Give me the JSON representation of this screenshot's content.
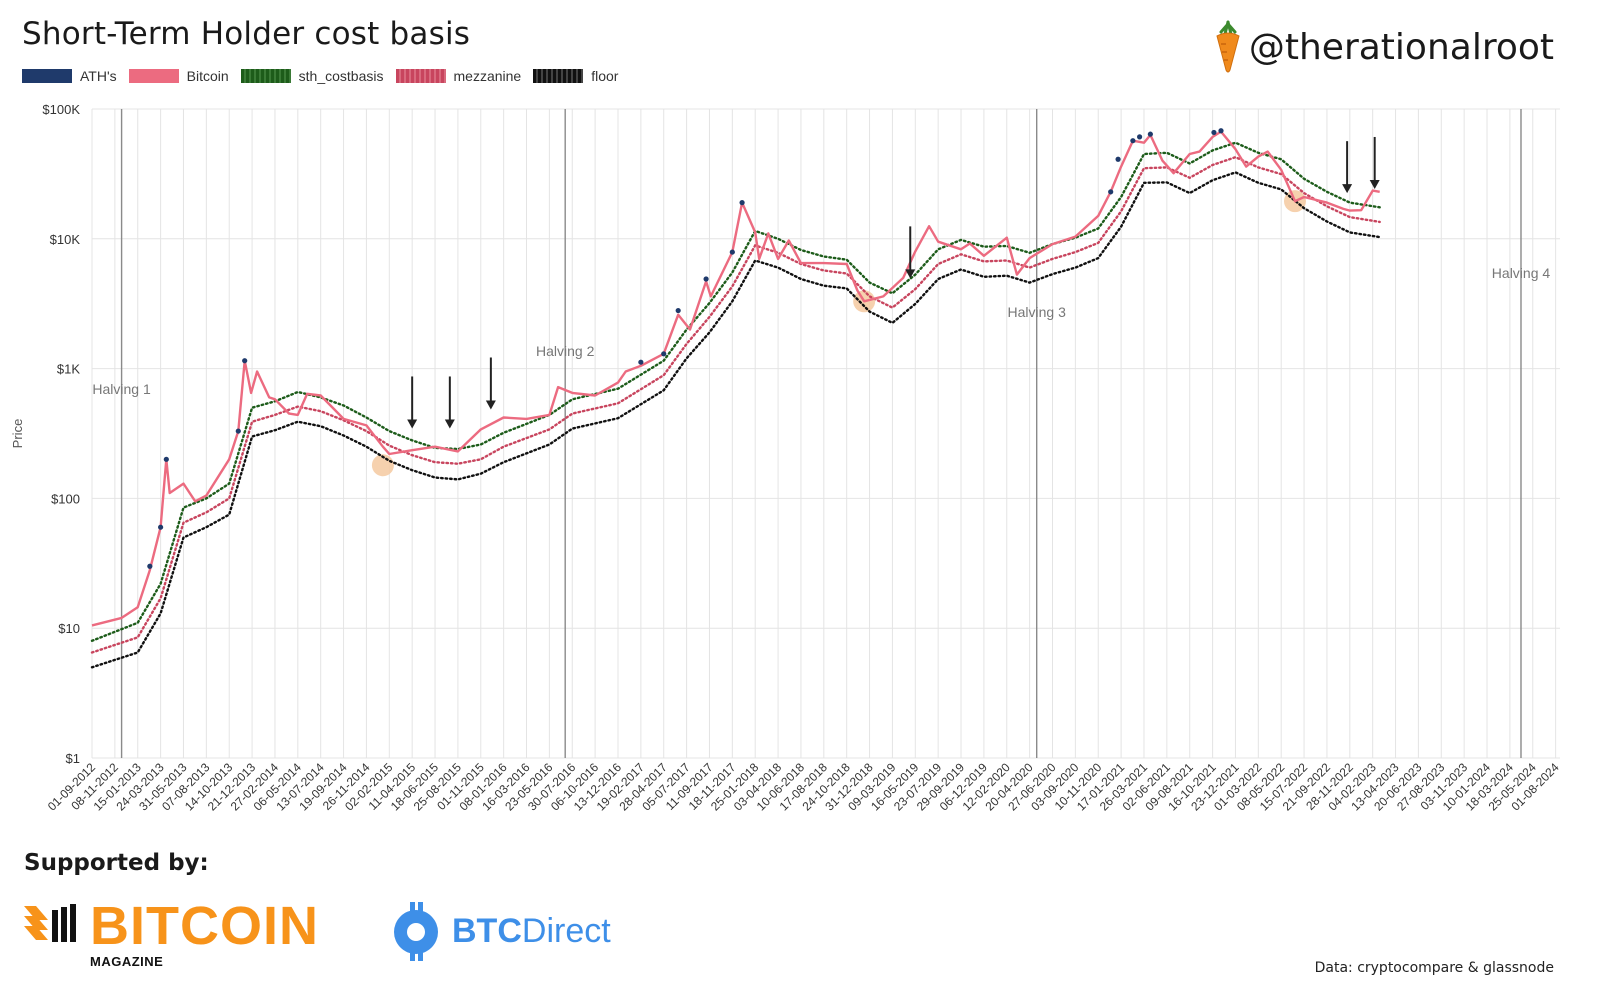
{
  "header": {
    "title": "Short-Term Holder cost basis",
    "handle": "@therationalroot",
    "handle_icon": "carrot-icon"
  },
  "footer": {
    "supported_by": "Supported by:",
    "bitcoin_magazine_word": "BITCOIN",
    "bitcoin_magazine_sub": "MAGAZINE",
    "btc_direct_word_bold": "BTC",
    "btc_direct_word": "Direct",
    "source": "Data: cryptocompare & glassnode"
  },
  "colors": {
    "ath": "#1f3a6b",
    "bitcoin": "#ec6b80",
    "sth_costbasis": "#1d5c1a",
    "mezzanine": "#c8455e",
    "floor": "#111111",
    "halving_line": "#8a8a8a",
    "grid": "#e4e4e4",
    "capitulation_circle": "#f5c9a0",
    "bitcoin_magazine": "#f7931a",
    "btc_direct": "#3e8fe8"
  },
  "chart_data": {
    "type": "line",
    "title": "Short-Term Holder cost basis",
    "ylabel": "Price",
    "xlabel": "",
    "y_scale": "log",
    "ylim": [
      1,
      100000
    ],
    "y_ticks": [
      1,
      10,
      100,
      1000,
      10000,
      100000
    ],
    "y_tick_labels": [
      "$1",
      "$10",
      "$100",
      "$1K",
      "$10K",
      "$100K"
    ],
    "x_range": [
      "2012-09-01",
      "2024-08-14"
    ],
    "x_tick_labels": [
      "01-09-2012",
      "08-11-2012",
      "15-01-2013",
      "24-03-2013",
      "31-05-2013",
      "07-08-2013",
      "14-10-2013",
      "21-12-2013",
      "27-02-2014",
      "06-05-2014",
      "13-07-2014",
      "19-09-2014",
      "26-11-2014",
      "02-02-2015",
      "11-04-2015",
      "18-06-2015",
      "25-08-2015",
      "01-11-2015",
      "08-01-2016",
      "16-03-2016",
      "23-05-2016",
      "30-07-2016",
      "06-10-2016",
      "13-12-2016",
      "19-02-2017",
      "28-04-2017",
      "05-07-2017",
      "11-09-2017",
      "18-11-2017",
      "25-01-2018",
      "03-04-2018",
      "10-06-2018",
      "17-08-2018",
      "24-10-2018",
      "31-12-2018",
      "09-03-2019",
      "16-05-2019",
      "23-07-2019",
      "29-09-2019",
      "06-12-2019",
      "12-02-2020",
      "20-04-2020",
      "27-06-2020",
      "03-09-2020",
      "10-11-2020",
      "17-01-2021",
      "26-03-2021",
      "02-06-2021",
      "09-08-2021",
      "16-10-2021",
      "23-12-2021",
      "01-03-2022",
      "08-05-2022",
      "15-07-2022",
      "21-09-2022",
      "28-11-2022",
      "04-02-2023",
      "13-04-2023",
      "20-06-2023",
      "27-08-2023",
      "03-11-2023",
      "10-01-2024",
      "18-03-2024",
      "25-05-2024",
      "01-08-2024"
    ],
    "grid": true,
    "legend_position": "top-left",
    "legend": [
      "ATH's",
      "Bitcoin",
      "sth_costbasis",
      "mezzanine",
      "floor"
    ],
    "series": [
      {
        "name": "Bitcoin",
        "x": [
          "2012-09-01",
          "2012-11-28",
          "2013-01-15",
          "2013-02-20",
          "2013-03-24",
          "2013-04-10",
          "2013-04-20",
          "2013-05-31",
          "2013-07-05",
          "2013-08-07",
          "2013-10-14",
          "2013-11-10",
          "2013-11-29",
          "2013-12-18",
          "2014-01-05",
          "2014-02-10",
          "2014-02-27",
          "2014-04-10",
          "2014-05-06",
          "2014-06-03",
          "2014-07-13",
          "2014-09-19",
          "2014-11-26",
          "2015-01-14",
          "2015-02-02",
          "2015-04-11",
          "2015-06-18",
          "2015-08-25",
          "2015-11-01",
          "2016-01-08",
          "2016-03-16",
          "2016-05-23",
          "2016-06-18",
          "2016-07-30",
          "2016-10-06",
          "2016-12-13",
          "2017-01-05",
          "2017-02-19",
          "2017-04-28",
          "2017-06-10",
          "2017-07-15",
          "2017-09-01",
          "2017-09-15",
          "2017-11-18",
          "2017-12-17",
          "2018-01-25",
          "2018-02-06",
          "2018-03-05",
          "2018-04-03",
          "2018-05-05",
          "2018-06-10",
          "2018-08-17",
          "2018-10-24",
          "2018-11-25",
          "2018-12-15",
          "2019-02-10",
          "2019-04-10",
          "2019-05-16",
          "2019-06-26",
          "2019-07-23",
          "2019-09-29",
          "2019-10-25",
          "2019-12-06",
          "2020-02-12",
          "2020-03-13",
          "2020-04-20",
          "2020-06-27",
          "2020-09-03",
          "2020-11-10",
          "2020-12-17",
          "2021-01-17",
          "2021-02-21",
          "2021-03-26",
          "2021-04-14",
          "2021-05-20",
          "2021-06-22",
          "2021-08-09",
          "2021-09-07",
          "2021-10-16",
          "2021-11-10",
          "2021-12-23",
          "2022-01-24",
          "2022-03-01",
          "2022-03-29",
          "2022-05-08",
          "2022-06-18",
          "2022-07-15",
          "2022-09-21",
          "2022-11-09",
          "2022-11-28",
          "2023-01-01",
          "2023-02-04",
          "2023-02-25"
        ],
        "values": [
          10.5,
          12,
          14.5,
          28,
          60,
          200,
          110,
          130,
          95,
          105,
          200,
          330,
          1150,
          650,
          950,
          600,
          580,
          450,
          440,
          640,
          620,
          410,
          365,
          250,
          220,
          235,
          250,
          230,
          340,
          420,
          410,
          440,
          720,
          650,
          620,
          780,
          950,
          1050,
          1300,
          2600,
          2000,
          4700,
          3600,
          7900,
          19000,
          11200,
          7000,
          11000,
          7000,
          9700,
          6500,
          6500,
          6400,
          4000,
          3300,
          3600,
          5000,
          8000,
          12500,
          9500,
          8300,
          9200,
          7400,
          10200,
          5300,
          7100,
          9100,
          10400,
          15000,
          23000,
          36000,
          57000,
          55000,
          63000,
          40000,
          32000,
          45000,
          47000,
          61000,
          67000,
          49000,
          36000,
          43000,
          47000,
          34000,
          19500,
          21000,
          19000,
          17000,
          16500,
          16600,
          23500,
          23000
        ]
      },
      {
        "name": "sth_costbasis",
        "x": [
          "2012-09-01",
          "2013-01-15",
          "2013-03-24",
          "2013-05-31",
          "2013-08-07",
          "2013-10-14",
          "2013-12-21",
          "2014-02-27",
          "2014-05-06",
          "2014-07-13",
          "2014-09-19",
          "2014-11-26",
          "2015-02-02",
          "2015-04-11",
          "2015-06-18",
          "2015-08-25",
          "2015-11-01",
          "2016-01-08",
          "2016-05-23",
          "2016-07-30",
          "2016-12-13",
          "2017-04-28",
          "2017-07-05",
          "2017-09-11",
          "2017-11-18",
          "2018-01-25",
          "2018-04-03",
          "2018-06-10",
          "2018-08-17",
          "2018-10-24",
          "2018-12-31",
          "2019-03-09",
          "2019-05-16",
          "2019-07-23",
          "2019-09-29",
          "2019-12-06",
          "2020-02-12",
          "2020-04-20",
          "2020-06-27",
          "2020-09-03",
          "2020-11-10",
          "2021-01-17",
          "2021-03-26",
          "2021-06-02",
          "2021-08-09",
          "2021-10-16",
          "2021-12-23",
          "2022-03-01",
          "2022-05-08",
          "2022-07-15",
          "2022-09-21",
          "2022-11-28",
          "2023-02-25"
        ],
        "values": [
          8,
          11,
          22,
          85,
          100,
          130,
          500,
          560,
          660,
          600,
          520,
          420,
          330,
          280,
          245,
          240,
          260,
          320,
          440,
          580,
          700,
          1150,
          2000,
          3200,
          5500,
          11500,
          10000,
          8200,
          7300,
          6900,
          4600,
          3800,
          5300,
          8300,
          9800,
          8700,
          8800,
          7800,
          9100,
          10200,
          12000,
          21000,
          45000,
          46000,
          38000,
          48000,
          55000,
          46000,
          41000,
          29000,
          23000,
          19000,
          17500
        ]
      },
      {
        "name": "mezzanine",
        "x": [
          "2012-09-01",
          "2013-01-15",
          "2013-03-24",
          "2013-05-31",
          "2013-08-07",
          "2013-10-14",
          "2013-12-21",
          "2014-02-27",
          "2014-05-06",
          "2014-07-13",
          "2014-09-19",
          "2014-11-26",
          "2015-02-02",
          "2015-04-11",
          "2015-06-18",
          "2015-08-25",
          "2015-11-01",
          "2016-01-08",
          "2016-05-23",
          "2016-07-30",
          "2016-12-13",
          "2017-04-28",
          "2017-07-05",
          "2017-09-11",
          "2017-11-18",
          "2018-01-25",
          "2018-04-03",
          "2018-06-10",
          "2018-08-17",
          "2018-10-24",
          "2018-12-31",
          "2019-03-09",
          "2019-05-16",
          "2019-07-23",
          "2019-09-29",
          "2019-12-06",
          "2020-02-12",
          "2020-04-20",
          "2020-06-27",
          "2020-09-03",
          "2020-11-10",
          "2021-01-17",
          "2021-03-26",
          "2021-06-02",
          "2021-08-09",
          "2021-10-16",
          "2021-12-23",
          "2022-03-01",
          "2022-05-08",
          "2022-07-15",
          "2022-09-21",
          "2022-11-28",
          "2023-02-25"
        ],
        "values": [
          6.5,
          8.5,
          17,
          65,
          78,
          100,
          390,
          440,
          510,
          470,
          400,
          330,
          255,
          215,
          190,
          185,
          200,
          250,
          340,
          450,
          540,
          890,
          1550,
          2500,
          4300,
          8900,
          7800,
          6400,
          5700,
          5400,
          3600,
          2950,
          4100,
          6400,
          7600,
          6700,
          6800,
          6000,
          7000,
          7900,
          9300,
          16300,
          35000,
          35500,
          29500,
          37000,
          42500,
          35500,
          31500,
          22500,
          17800,
          14700,
          13500
        ]
      },
      {
        "name": "floor",
        "x": [
          "2012-09-01",
          "2013-01-15",
          "2013-03-24",
          "2013-05-31",
          "2013-08-07",
          "2013-10-14",
          "2013-12-21",
          "2014-02-27",
          "2014-05-06",
          "2014-07-13",
          "2014-09-19",
          "2014-11-26",
          "2015-02-02",
          "2015-04-11",
          "2015-06-18",
          "2015-08-25",
          "2015-11-01",
          "2016-01-08",
          "2016-05-23",
          "2016-07-30",
          "2016-12-13",
          "2017-04-28",
          "2017-07-05",
          "2017-09-11",
          "2017-11-18",
          "2018-01-25",
          "2018-04-03",
          "2018-06-10",
          "2018-08-17",
          "2018-10-24",
          "2018-12-31",
          "2019-03-09",
          "2019-05-16",
          "2019-07-23",
          "2019-09-29",
          "2019-12-06",
          "2020-02-12",
          "2020-04-20",
          "2020-06-27",
          "2020-09-03",
          "2020-11-10",
          "2021-01-17",
          "2021-03-26",
          "2021-06-02",
          "2021-08-09",
          "2021-10-16",
          "2021-12-23",
          "2022-03-01",
          "2022-05-08",
          "2022-07-15",
          "2022-09-21",
          "2022-11-28",
          "2023-02-25"
        ],
        "values": [
          5,
          6.5,
          13,
          50,
          60,
          75,
          300,
          335,
          390,
          360,
          305,
          250,
          195,
          165,
          145,
          140,
          155,
          190,
          260,
          345,
          415,
          680,
          1200,
          1900,
          3300,
          6800,
          6000,
          4900,
          4350,
          4150,
          2750,
          2250,
          3150,
          4900,
          5800,
          5100,
          5200,
          4600,
          5350,
          6000,
          7100,
          12400,
          27000,
          27200,
          22500,
          28300,
          32500,
          27000,
          24000,
          17200,
          13600,
          11200,
          10300
        ]
      },
      {
        "name": "ATH's",
        "x": [
          "2013-02-20",
          "2013-03-24",
          "2013-04-10",
          "2013-11-10",
          "2013-11-29",
          "2017-02-19",
          "2017-04-28",
          "2017-06-10",
          "2017-09-01",
          "2017-11-18",
          "2017-12-17",
          "2020-12-17",
          "2021-01-08",
          "2021-02-21",
          "2021-03-13",
          "2021-04-14",
          "2021-10-20",
          "2021-11-10"
        ],
        "values": [
          30,
          60,
          200,
          330,
          1150,
          1120,
          1300,
          2800,
          4900,
          7900,
          19000,
          23000,
          41000,
          57000,
          61000,
          64000,
          66000,
          68000
        ]
      }
    ],
    "halvings": [
      {
        "label": "Halving 1",
        "date": "2012-11-28"
      },
      {
        "label": "Halving 2",
        "date": "2016-07-09"
      },
      {
        "label": "Halving 3",
        "date": "2020-05-11"
      },
      {
        "label": "Halving 4",
        "date": "2024-04-20"
      }
    ],
    "arrow_annotations": [
      {
        "date": "2015-04-11",
        "price": 300
      },
      {
        "date": "2015-08-01",
        "price": 300
      },
      {
        "date": "2015-12-01",
        "price": 420
      },
      {
        "date": "2019-05-01",
        "price": 4300
      },
      {
        "date": "2022-11-20",
        "price": 19500
      },
      {
        "date": "2023-02-10",
        "price": 21000
      }
    ],
    "circle_annotations": [
      {
        "date": "2015-01-14",
        "price": 180
      },
      {
        "date": "2018-12-15",
        "price": 3300
      },
      {
        "date": "2022-06-18",
        "price": 19500
      }
    ]
  }
}
